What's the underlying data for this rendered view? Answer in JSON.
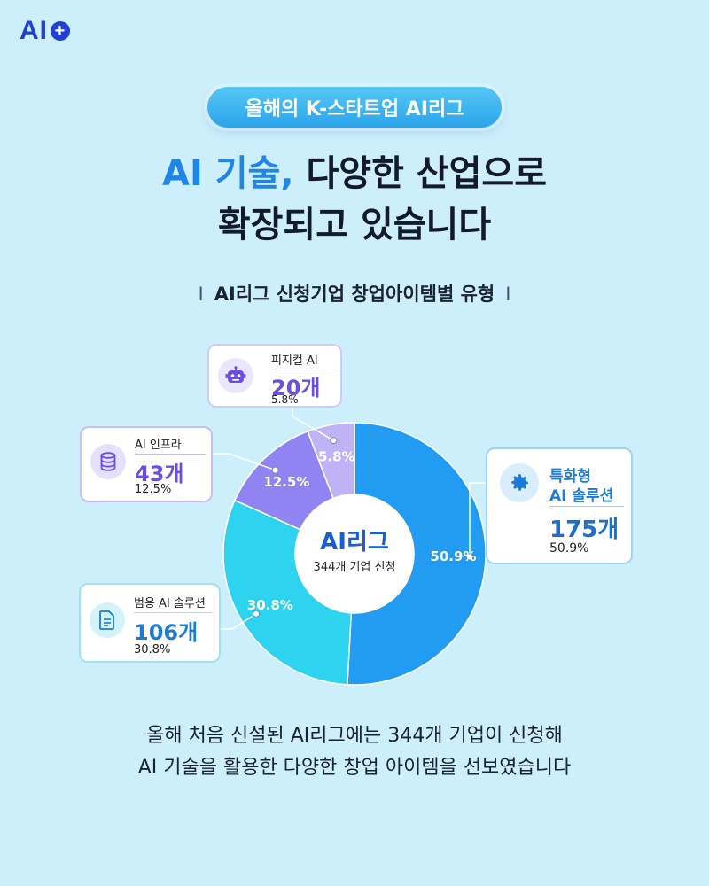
{
  "logo": {
    "text": "AI",
    "plus": "+"
  },
  "badge": "올해의 K-스타트업 AI리그",
  "headline": {
    "line1_accent": "AI 기술,",
    "line1_rest": " 다양한 산업으로",
    "line2": "확장되고 있습니다"
  },
  "subtitle": {
    "bar": "I",
    "text": "AI리그 신청기업 창업아이템별 유형"
  },
  "chart_data": {
    "type": "pie",
    "title": "AI리그 신청기업 창업아이템별 유형",
    "center_title": "AI리그",
    "center_subtitle": "344개 기업 신청",
    "total": 344,
    "slices": [
      {
        "name": "특화형 AI 솔루션",
        "count": 175,
        "count_label": "175개",
        "percent": 50.9,
        "percent_label": "50.9%",
        "color": "#229bf2",
        "icon": "gear-icon"
      },
      {
        "name": "범용 AI 솔루션",
        "count": 106,
        "count_label": "106개",
        "percent": 30.8,
        "percent_label": "30.8%",
        "color": "#2ed3ef",
        "icon": "document-icon"
      },
      {
        "name": "AI 인프라",
        "count": 43,
        "count_label": "43개",
        "percent": 12.5,
        "percent_label": "12.5%",
        "color": "#8f84f2",
        "icon": "database-icon"
      },
      {
        "name": "피지컬 AI",
        "count": 20,
        "count_label": "20개",
        "percent": 5.8,
        "percent_label": "5.8%",
        "color": "#bfb2f5",
        "icon": "robot-icon"
      }
    ]
  },
  "cards": {
    "special": {
      "label_line1": "특화형",
      "label_line2": "AI 솔루션",
      "count": "175개",
      "percent": "50.9%"
    },
    "general": {
      "label": "범용 AI 솔루션",
      "count": "106개",
      "percent": "30.8%"
    },
    "infra": {
      "label": "AI 인프라",
      "count": "43개",
      "percent": "12.5%"
    },
    "physical": {
      "label": "피지컬 AI",
      "count": "20개",
      "percent": "5.8%"
    }
  },
  "footer": {
    "line1": "올해 처음 신설된 AI리그에는 344개 기업이 신청해",
    "line2": "AI 기술을 활용한 다양한 창업 아이템을 선보였습니다"
  },
  "colors": {
    "background": "#cdeefb",
    "accent_blue": "#1f86e6",
    "purple": "#6b4fe0",
    "deep_blue": "#1a5fcf",
    "teal_blue": "#1b7bd6"
  }
}
